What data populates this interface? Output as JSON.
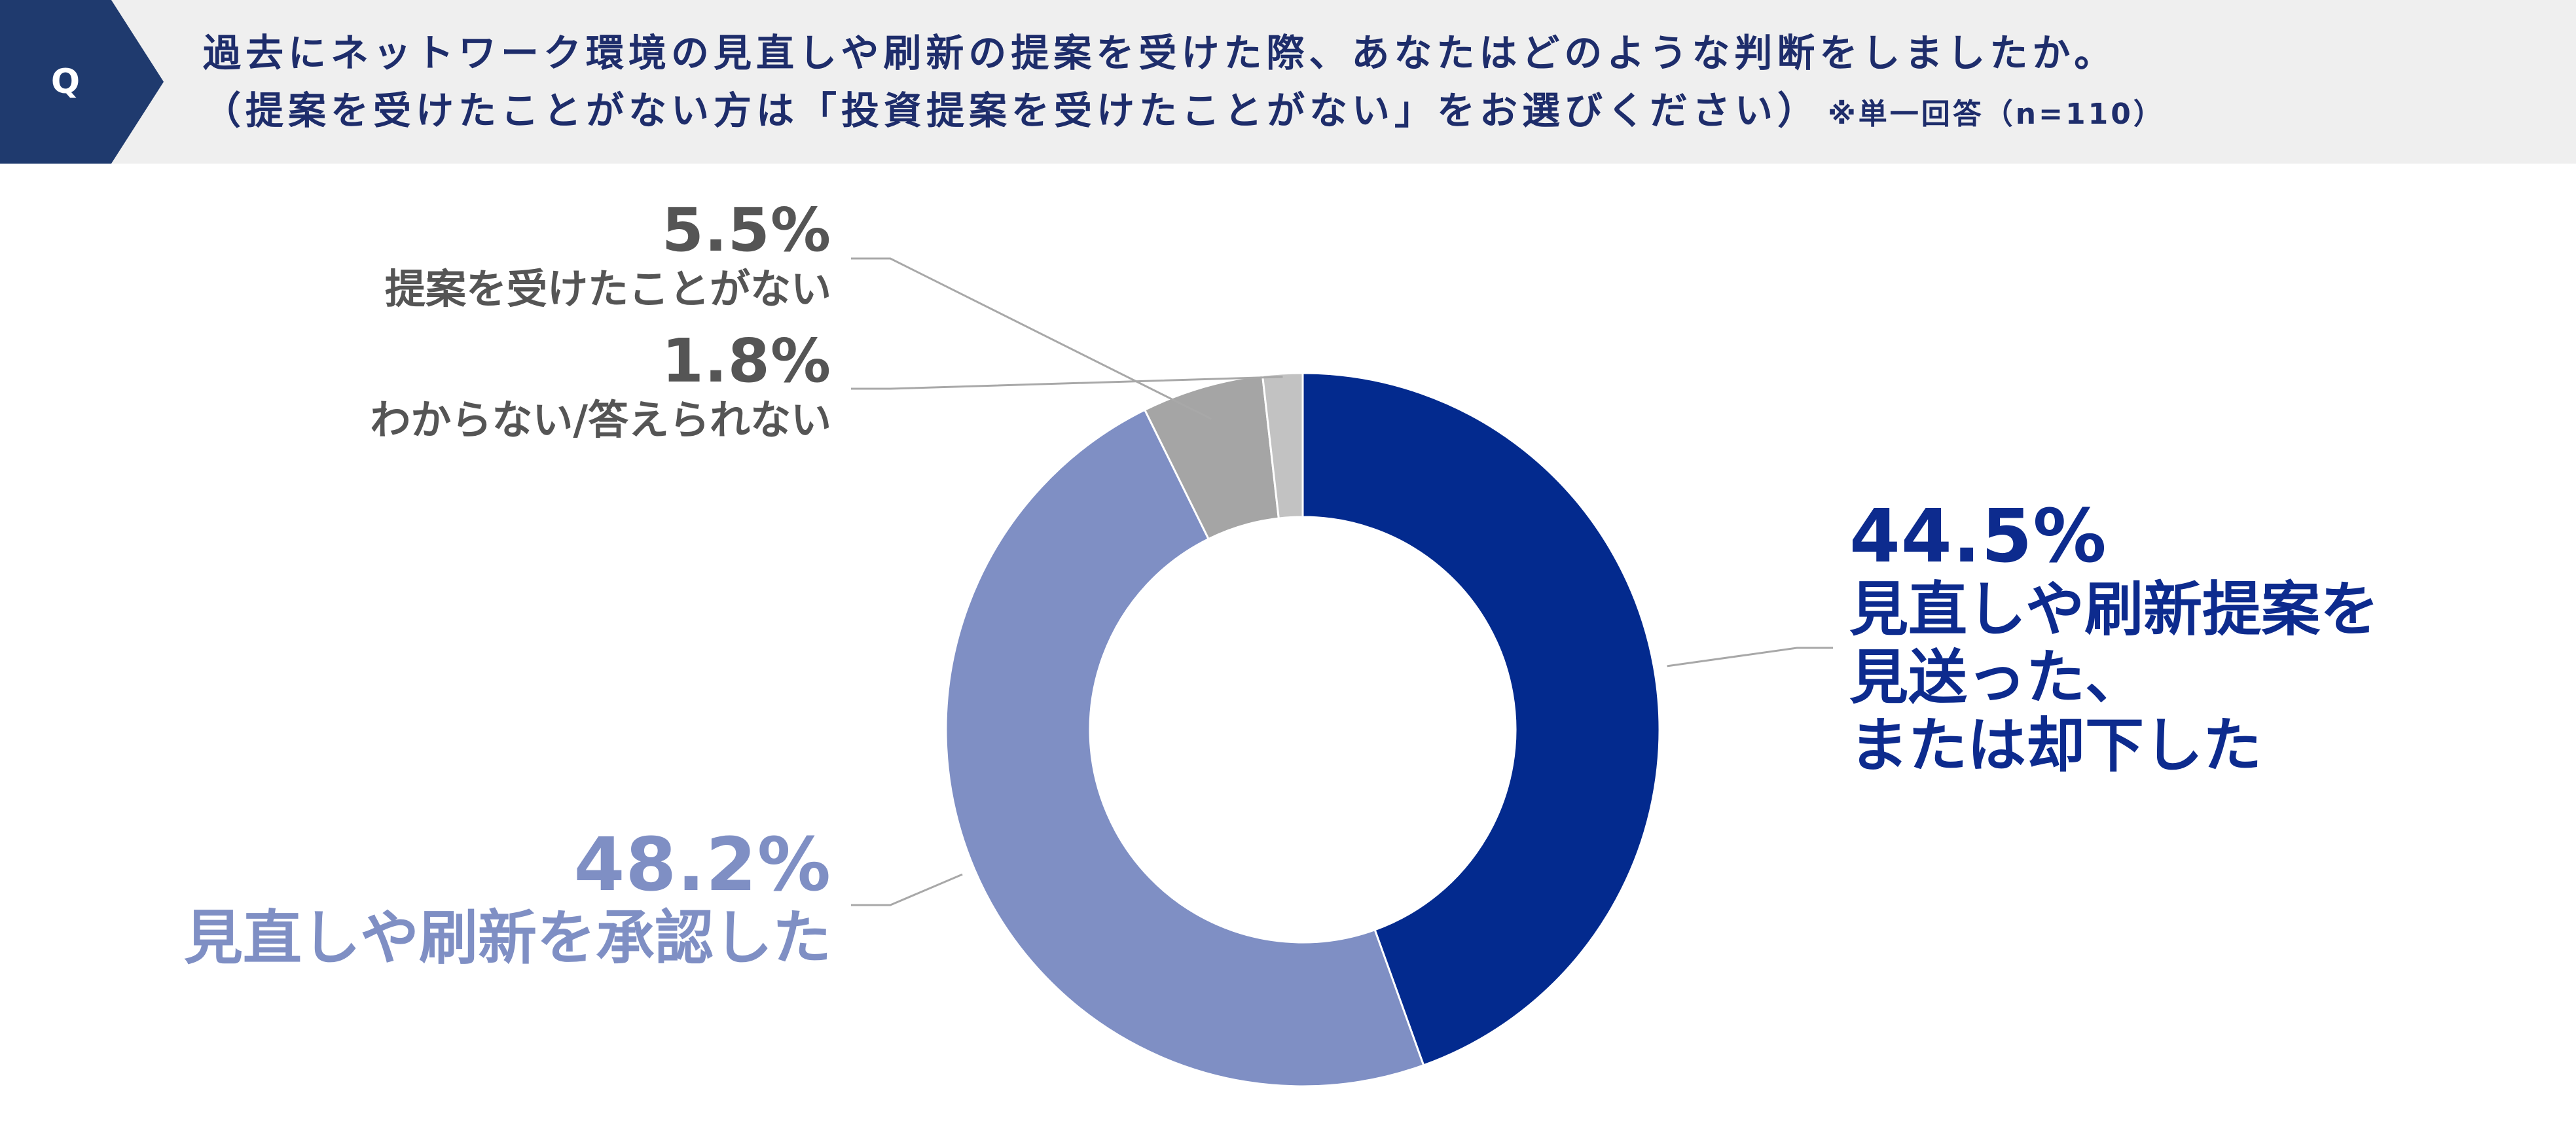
{
  "header": {
    "badge": "Q",
    "question_line1": "過去にネットワーク環境の見直しや刷新の提案を受けた際、あなたはどのような判断をしましたか。",
    "question_line2": "（提案を受けたことがない方は「投資提案を受けたことがない」をお選びください）",
    "note": "※単一回答（n=110）"
  },
  "colors": {
    "header_bg": "#efefef",
    "badge": "#1f3a6e",
    "title_text": "#1e2d6b",
    "series": [
      "#032a8e",
      "#7f8fc4",
      "#a5a5a5",
      "#c2c2c2"
    ]
  },
  "chart_data": {
    "type": "pie",
    "style": "donut",
    "categories": [
      "見直しや刷新提案を見送った、または却下した",
      "見直しや刷新を承認した",
      "提案を受けたことがない",
      "わからない/答えられない"
    ],
    "values": [
      44.5,
      48.2,
      5.5,
      1.8
    ],
    "unit": "%",
    "labels": [
      {
        "pct": "44.5%",
        "text": "見直しや刷新提案を\n見送った、\nまたは却下した"
      },
      {
        "pct": "48.2%",
        "text": "見直しや刷新を承認した"
      },
      {
        "pct": "5.5%",
        "text": "提案を受けたことがない"
      },
      {
        "pct": "1.8%",
        "text": "わからない/答えられない"
      }
    ],
    "title": "",
    "legend": "none"
  }
}
